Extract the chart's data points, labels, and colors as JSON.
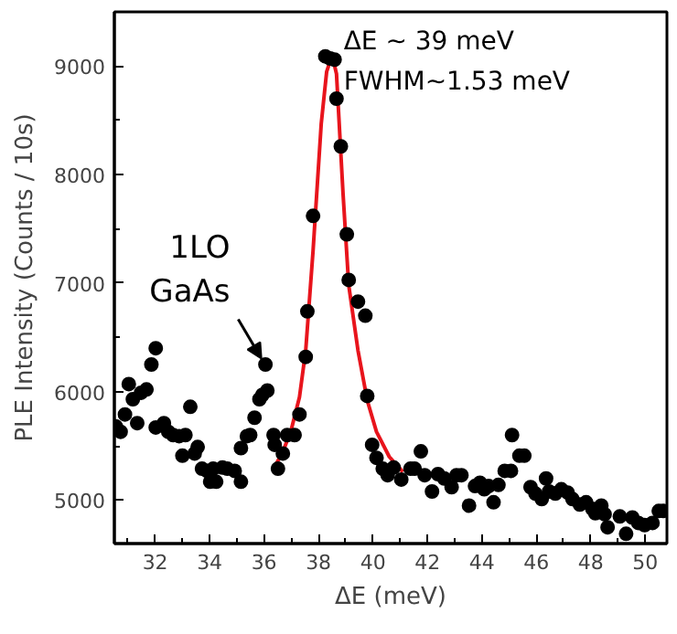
{
  "chart_data": {
    "type": "scatter",
    "xlabel": "ΔE (meV)",
    "ylabel": "PLE Intensity (Counts / 10s)",
    "xlim": [
      30.5,
      50.8
    ],
    "xticks": [
      32,
      34,
      36,
      38,
      40,
      42,
      44,
      46,
      48,
      50
    ],
    "ylim": [
      4600,
      9500
    ],
    "yticks": [
      5000,
      6000,
      7000,
      8000,
      9000
    ],
    "grid": false,
    "series": [
      {
        "marker": "circle",
        "color": "#000000",
        "x": [
          30.55,
          30.73,
          30.89,
          31.03,
          31.18,
          31.34,
          31.48,
          31.68,
          31.86,
          32.02,
          32.02,
          32.32,
          32.48,
          32.66,
          32.88,
          33.0,
          33.11,
          33.29,
          33.45,
          33.56,
          33.72,
          33.9,
          34.02,
          34.13,
          34.24,
          34.47,
          34.65,
          34.92,
          35.15,
          35.15,
          35.37,
          35.49,
          35.65,
          35.83,
          35.94,
          36.05,
          36.12,
          36.35,
          36.39,
          36.51,
          36.69,
          36.85,
          37.12,
          37.3,
          37.53,
          37.59,
          37.8,
          38.25,
          38.43,
          38.59,
          38.66,
          38.82,
          39.04,
          39.11,
          39.45,
          39.72,
          39.79,
          39.97,
          40.13,
          40.36,
          40.54,
          40.76,
          41.04,
          41.38,
          41.53,
          41.76,
          41.9,
          42.17,
          42.39,
          42.62,
          42.89,
          43.07,
          43.25,
          43.53,
          43.75,
          43.93,
          44.09,
          44.25,
          44.43,
          44.61,
          44.84,
          45.07,
          45.11,
          45.38,
          45.56,
          45.79,
          45.97,
          46.2,
          46.36,
          46.47,
          46.7,
          46.92,
          47.15,
          47.33,
          47.6,
          47.83,
          48.06,
          48.17,
          48.39,
          48.51,
          48.62,
          49.07,
          49.3,
          49.53,
          49.75,
          49.98,
          50.27,
          50.5,
          50.66
        ],
        "values": [
          5680,
          5630,
          5790,
          6070,
          5930,
          5710,
          5990,
          6020,
          6250,
          6400,
          5670,
          5710,
          5630,
          5600,
          5590,
          5410,
          5600,
          5860,
          5430,
          5490,
          5290,
          5270,
          5170,
          5290,
          5170,
          5300,
          5290,
          5270,
          5170,
          5480,
          5590,
          5600,
          5760,
          5930,
          5970,
          6250,
          6010,
          5600,
          5510,
          5290,
          5430,
          5600,
          5600,
          5790,
          6320,
          6740,
          7620,
          9090,
          9070,
          9060,
          8700,
          8260,
          7450,
          7030,
          6830,
          6700,
          5960,
          5510,
          5390,
          5290,
          5230,
          5300,
          5190,
          5290,
          5290,
          5450,
          5230,
          5080,
          5240,
          5200,
          5120,
          5230,
          5230,
          4950,
          5130,
          5160,
          5100,
          5130,
          4980,
          5140,
          5270,
          5270,
          5600,
          5410,
          5410,
          5120,
          5060,
          5010,
          5200,
          5080,
          5060,
          5100,
          5070,
          5010,
          4960,
          4980,
          4920,
          4880,
          4950,
          4870,
          4750,
          4850,
          4690,
          4840,
          4790,
          4770,
          4790,
          4900,
          4900
        ]
      },
      {
        "type": "line",
        "marker": "none",
        "color": "#e8141c",
        "line_style": "solid",
        "x": [
          36.35,
          36.7,
          37.0,
          37.3,
          37.53,
          37.8,
          38.1,
          38.3,
          38.5,
          38.66,
          38.9,
          39.11,
          39.45,
          39.79,
          40.13,
          40.6,
          41.1
        ],
        "values": [
          5290,
          5450,
          5650,
          5950,
          6380,
          7300,
          8470,
          8950,
          9100,
          8930,
          7830,
          6980,
          6380,
          5920,
          5630,
          5400,
          5260
        ]
      }
    ],
    "annotations": [
      "ΔE ~ 39 meV",
      "FWHM~1.53 meV",
      {
        "text": "1LO\nGaAs",
        "x": 36.05,
        "y": 6246
      }
    ]
  }
}
